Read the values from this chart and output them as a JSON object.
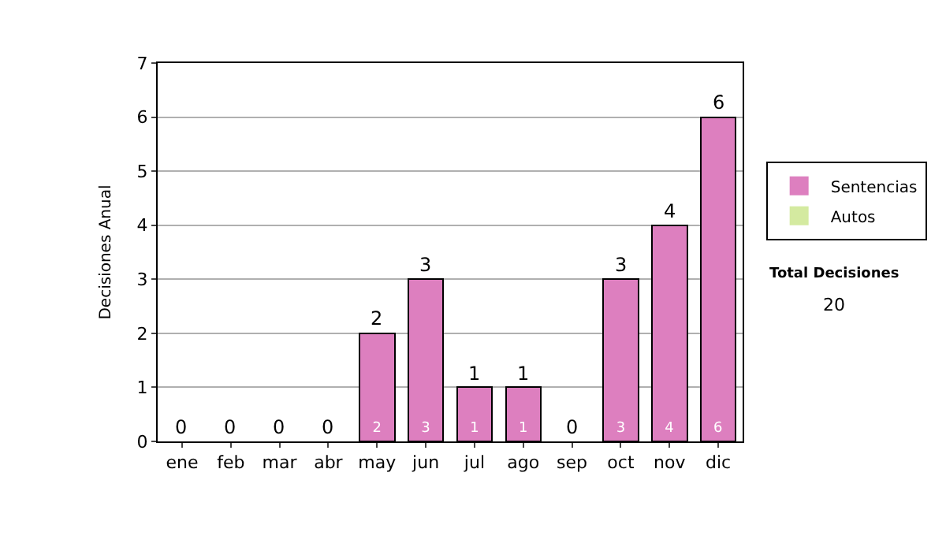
{
  "chart_data": {
    "type": "bar",
    "ylabel": "Decisiones Anual",
    "categories": [
      "ene",
      "feb",
      "mar",
      "abr",
      "may",
      "jun",
      "jul",
      "ago",
      "sep",
      "oct",
      "nov",
      "dic"
    ],
    "stacked": true,
    "series": [
      {
        "name": "Sentencias",
        "color": "#dd7fbf",
        "values": [
          0,
          0,
          0,
          0,
          2,
          3,
          1,
          1,
          0,
          3,
          4,
          6
        ],
        "value_labels": [
          null,
          null,
          null,
          null,
          "2",
          "3",
          "1",
          "1",
          null,
          "3",
          "4",
          "6"
        ]
      },
      {
        "name": "Autos",
        "color": "#d4eaa0",
        "values": [
          0,
          0,
          0,
          0,
          0,
          0,
          0,
          0,
          0,
          0,
          0,
          0
        ]
      }
    ],
    "totals": [
      "0",
      "0",
      "0",
      "0",
      "2",
      "3",
      "1",
      "1",
      "0",
      "3",
      "4",
      "6"
    ],
    "ylim": [
      0,
      7
    ],
    "yticks": [
      0,
      1,
      2,
      3,
      4,
      5,
      6,
      7
    ],
    "grid": "y",
    "legend": "right",
    "annotations": [
      "Total Decisiones",
      "20"
    ]
  }
}
